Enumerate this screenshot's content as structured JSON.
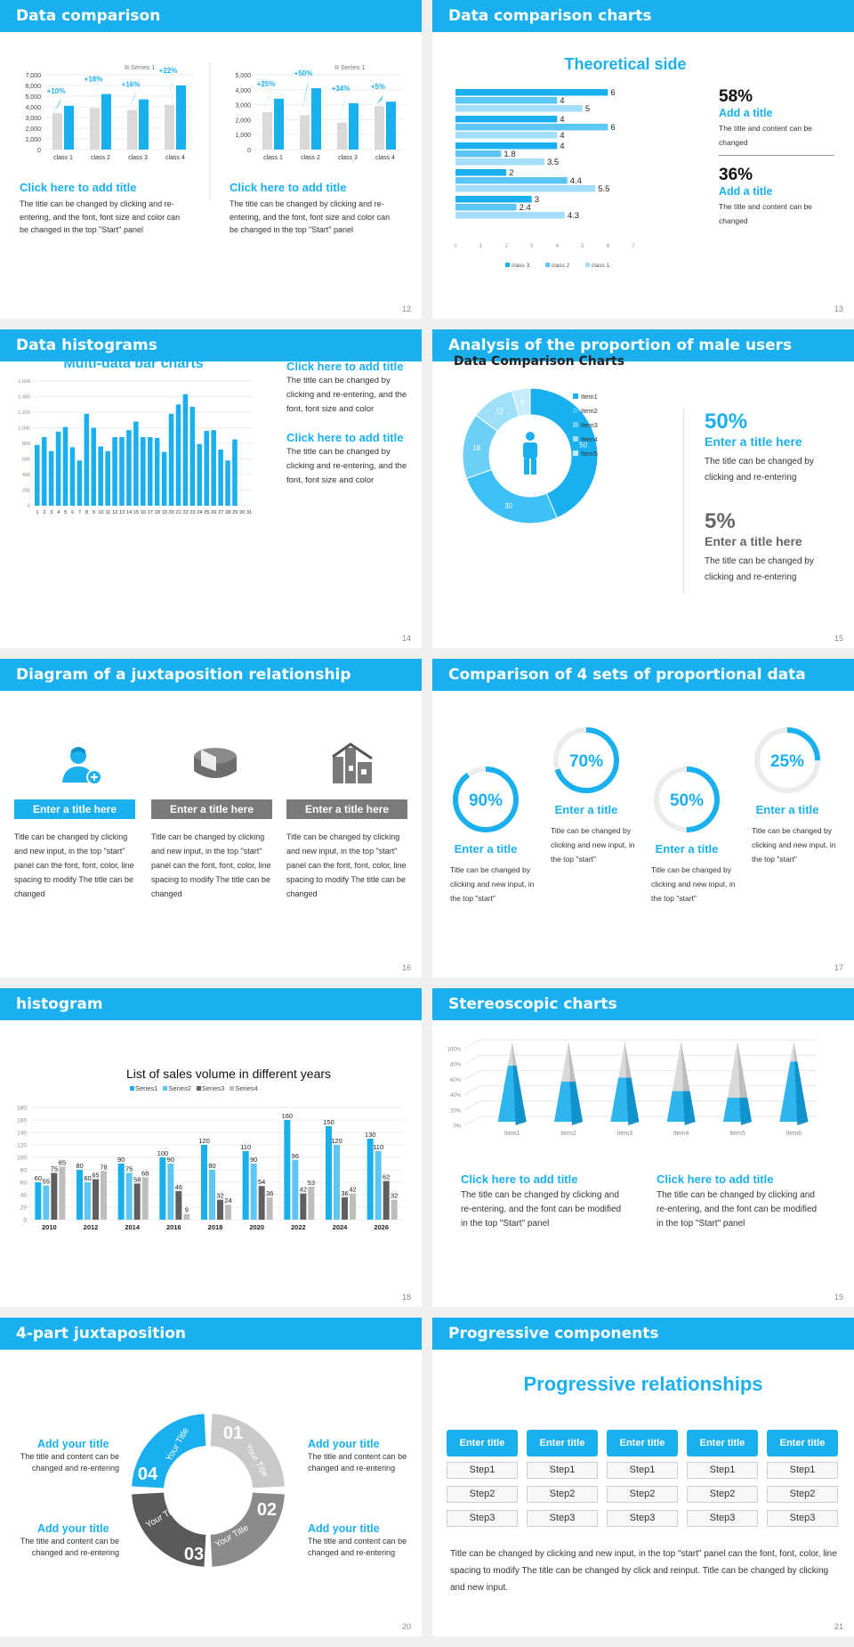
{
  "colors": {
    "accent": "#1ab0f0",
    "gray": "#7a7a7a",
    "light": "#d9d9d9",
    "dark": "#555555"
  },
  "s12": {
    "header": "Data comparison",
    "page": "12",
    "title": "Click here to add title",
    "body": "The title can be changed by clicking and re-entering, and the font, font size and color can be changed in the top \"Start\" panel",
    "chart_left": {
      "legend": "Series 1",
      "yticks": [
        "7,000",
        "6,000",
        "5,000",
        "4,000",
        "3,000",
        "2,000",
        "1,000",
        "0"
      ],
      "categories": [
        "class 1",
        "class 2",
        "class 3",
        "class 4"
      ],
      "gray": [
        3400,
        3900,
        3700,
        4200
      ],
      "blue": [
        4100,
        5200,
        4700,
        6000
      ],
      "pct": [
        "+10%",
        "+18%",
        "+16%",
        "+22%"
      ],
      "ymax": 7000
    },
    "chart_right": {
      "legend": "Series 1",
      "yticks": [
        "5,000",
        "4,000",
        "3,000",
        "2,000",
        "1,000",
        "0"
      ],
      "categories": [
        "class 1",
        "class 2",
        "class 3",
        "class 4"
      ],
      "gray": [
        2500,
        2300,
        1800,
        2900
      ],
      "blue": [
        3400,
        4100,
        3100,
        3200
      ],
      "pct": [
        "+25%",
        "+50%",
        "+34%",
        "+5%"
      ],
      "ymax": 5000
    }
  },
  "s13": {
    "header": "Data comparison charts",
    "page": "13",
    "chart_title": "Theoretical side",
    "chart_data": {
      "type": "bar",
      "orientation": "horizontal",
      "groups": [
        {
          "class3": 6,
          "class2": 4,
          "class1": 5
        },
        {
          "class3": 4,
          "class2": 6,
          "class1": 4
        },
        {
          "class3": 4,
          "class2": 1.8,
          "class1": 3.5
        },
        {
          "class3": 2,
          "class2": 4.4,
          "class1": 5.5
        },
        {
          "class3": 3,
          "class2": 2.4,
          "class1": 4.3
        }
      ],
      "xticks": [
        "0",
        "1",
        "2",
        "3",
        "4",
        "5",
        "6",
        "7"
      ],
      "xmax": 7,
      "legend": [
        "class 3",
        "class 2",
        "class 1"
      ]
    },
    "stat1": {
      "value": "58%",
      "title": "Add a title",
      "body": "The title and content can be changed"
    },
    "stat2": {
      "value": "36%",
      "title": "Add a title",
      "body": "The title and content can be changed"
    }
  },
  "s14": {
    "header": "Data histograms",
    "page": "14",
    "chart_title": "Multi-data bar charts",
    "chart_data": {
      "type": "bar",
      "categories": [
        "1",
        "2",
        "3",
        "4",
        "5",
        "6",
        "7",
        "8",
        "9",
        "10",
        "11",
        "12",
        "13",
        "14",
        "15",
        "16",
        "17",
        "18",
        "19",
        "20",
        "21",
        "22",
        "23",
        "24",
        "25",
        "26",
        "27",
        "28",
        "29",
        "30",
        "31"
      ],
      "values": [
        780,
        880,
        700,
        950,
        1010,
        750,
        580,
        1180,
        1000,
        760,
        700,
        880,
        880,
        970,
        1080,
        880,
        880,
        870,
        690,
        1180,
        1300,
        1430,
        1270,
        790,
        960,
        970,
        720,
        580,
        850,
        0,
        0
      ],
      "yticks": [
        "1,600",
        "1,400",
        "1,200",
        "1,000",
        "800",
        "600",
        "400",
        "200",
        "0"
      ],
      "ymax": 1600
    },
    "item1": {
      "title": "Click here to add title",
      "body": "The title can be changed by clicking and re-entering, and the font, font size and color"
    },
    "item2": {
      "title": "Click here to add title",
      "body": "The title can be changed by clicking and re-entering, and the font, font size and color"
    }
  },
  "s15": {
    "header": "Analysis of the proportion of male users",
    "page": "15",
    "chart_title": "Data Comparison Charts",
    "chart_data": {
      "type": "pie",
      "labels": [
        "Item1",
        "Item2",
        "Item3",
        "Item4",
        "Item5"
      ],
      "values": [
        50,
        30,
        18,
        12,
        5
      ],
      "colors": [
        "#1ab0f0",
        "#3dc0f5",
        "#6bcff7",
        "#9edff9",
        "#c8ecfb"
      ]
    },
    "stat1": {
      "value": "50%",
      "title": "Enter a title here",
      "body": "The title can be changed by clicking and re-entering"
    },
    "stat2": {
      "value": "5%",
      "title": "Enter a title here",
      "body": "The title can be changed by clicking and re-entering"
    }
  },
  "s16": {
    "header": "Diagram of a juxtaposition relationship",
    "page": "16",
    "cols": [
      {
        "label": "Enter a title here",
        "body": "Title can be changed by clicking and new input, in the top \"start\" panel can the font, font, color, line spacing to modify The title can be changed"
      },
      {
        "label": "Enter a title here",
        "body": "Title can be changed by clicking and new input, in the top \"start\" panel can the font, font, color, line spacing to modify The title can be changed"
      },
      {
        "label": "Enter a title here",
        "body": "Title can be changed by clicking and new input, in the top \"start\" panel can the font, font, color, line spacing to modify The title can be changed"
      }
    ]
  },
  "s17": {
    "header": "Comparison of 4 sets of proportional data",
    "page": "17",
    "items": [
      {
        "pct": "90%",
        "value": 0.9,
        "title": "Enter a title",
        "body": "Title can be changed by clicking and new input, in the top \"start\""
      },
      {
        "pct": "70%",
        "value": 0.7,
        "title": "Enter a title",
        "body": "Title can be changed by clicking and new input, in the top \"start\""
      },
      {
        "pct": "50%",
        "value": 0.5,
        "title": "Enter a title",
        "body": "Title can be changed by clicking and new input, in the top \"start\""
      },
      {
        "pct": "25%",
        "value": 0.25,
        "title": "Enter a title",
        "body": "Title can be changed by clicking and new input, in the top \"start\""
      }
    ]
  },
  "s18": {
    "header": "histogram",
    "page": "18",
    "chart_title": "List of sales volume in different years",
    "chart_data": {
      "type": "bar",
      "categories": [
        "2010",
        "2012",
        "2014",
        "2016",
        "2018",
        "2020",
        "2022",
        "2024",
        "2026"
      ],
      "series": [
        {
          "name": "Series1",
          "values": [
            60,
            80,
            90,
            100,
            120,
            110,
            160,
            150,
            130
          ]
        },
        {
          "name": "Series2",
          "values": [
            55,
            60,
            75,
            90,
            80,
            90,
            96,
            120,
            110
          ]
        },
        {
          "name": "Series3",
          "values": [
            75,
            65,
            58,
            46,
            32,
            54,
            42,
            36,
            62
          ]
        },
        {
          "name": "Series4",
          "values": [
            85,
            78,
            68,
            9,
            24,
            36,
            53,
            42,
            32
          ]
        }
      ],
      "yticks": [
        "180",
        "160",
        "140",
        "120",
        "100",
        "80",
        "60",
        "40",
        "20",
        "0"
      ],
      "ymax": 180
    }
  },
  "s19": {
    "header": "Stereoscopic charts",
    "page": "19",
    "chart_data": {
      "type": "bar",
      "style": "3d-cone",
      "categories": [
        "Item1",
        "Item2",
        "Item3",
        "Item4",
        "Item5",
        "Item6"
      ],
      "values": [
        0.7,
        0.5,
        0.55,
        0.38,
        0.3,
        0.75
      ],
      "yticks": [
        "100%",
        "80%",
        "60%",
        "40%",
        "20%",
        "0%"
      ]
    },
    "item1": {
      "title": "Click here to add title",
      "body": "The title can be changed by clicking and re-entering, and the font can be modified in the top \"Start\" panel"
    },
    "item2": {
      "title": "Click here to add title",
      "body": "The title can be changed by clicking and re-entering, and the font can be modified in the top \"Start\" panel"
    }
  },
  "s20": {
    "header": "4-part juxtaposition",
    "page": "20",
    "segments": [
      {
        "num": "01",
        "label": "Your Title"
      },
      {
        "num": "02",
        "label": "Your Title"
      },
      {
        "num": "03",
        "label": "Your Title"
      },
      {
        "num": "04",
        "label": "Your Title"
      }
    ],
    "items": [
      {
        "title": "Add your title",
        "body": "The title and content can be changed and re-entering"
      },
      {
        "title": "Add your title",
        "body": "The title and content can be changed and re-entering"
      },
      {
        "title": "Add your title",
        "body": "The title and content can be changed and re-entering"
      },
      {
        "title": "Add your title",
        "body": "The title and content can be changed and re-entering"
      }
    ]
  },
  "s21": {
    "header": "Progressive components",
    "page": "21",
    "title": "Progressive relationships",
    "cols": [
      {
        "label": "Enter title",
        "steps": [
          "Step1",
          "Step2",
          "Step3"
        ]
      },
      {
        "label": "Enter title",
        "steps": [
          "Step1",
          "Step2",
          "Step3"
        ]
      },
      {
        "label": "Enter title",
        "steps": [
          "Step1",
          "Step2",
          "Step3"
        ]
      },
      {
        "label": "Enter title",
        "steps": [
          "Step1",
          "Step2",
          "Step3"
        ]
      },
      {
        "label": "Enter title",
        "steps": [
          "Step1",
          "Step2",
          "Step3"
        ]
      }
    ],
    "body": "Title can be changed by clicking and new input, in the top \"start\" panel can the font, font, color, line spacing to modify The title can be changed by click and reinput. Title can be changed by clicking and new input."
  }
}
